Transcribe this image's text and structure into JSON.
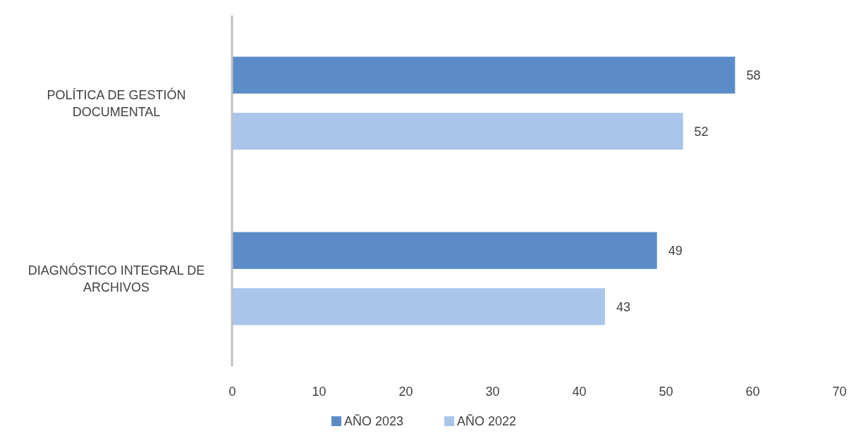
{
  "chart_data": {
    "type": "bar",
    "orientation": "horizontal",
    "categories": [
      "POLÍTICA DE GESTIÓN DOCUMENTAL",
      "DIAGNÓSTICO INTEGRAL DE ARCHIVOS"
    ],
    "series": [
      {
        "name": "AÑO 2023",
        "color": "#5b8cc8",
        "values": [
          58,
          49
        ]
      },
      {
        "name": "AÑO 2022",
        "color": "#a9c5ea",
        "values": [
          52,
          43
        ]
      }
    ],
    "xlim": [
      0,
      70
    ],
    "xticks": [
      0,
      10,
      20,
      30,
      40,
      50,
      60,
      70
    ],
    "grid": false,
    "legend": "bottom",
    "data_labels": true
  }
}
